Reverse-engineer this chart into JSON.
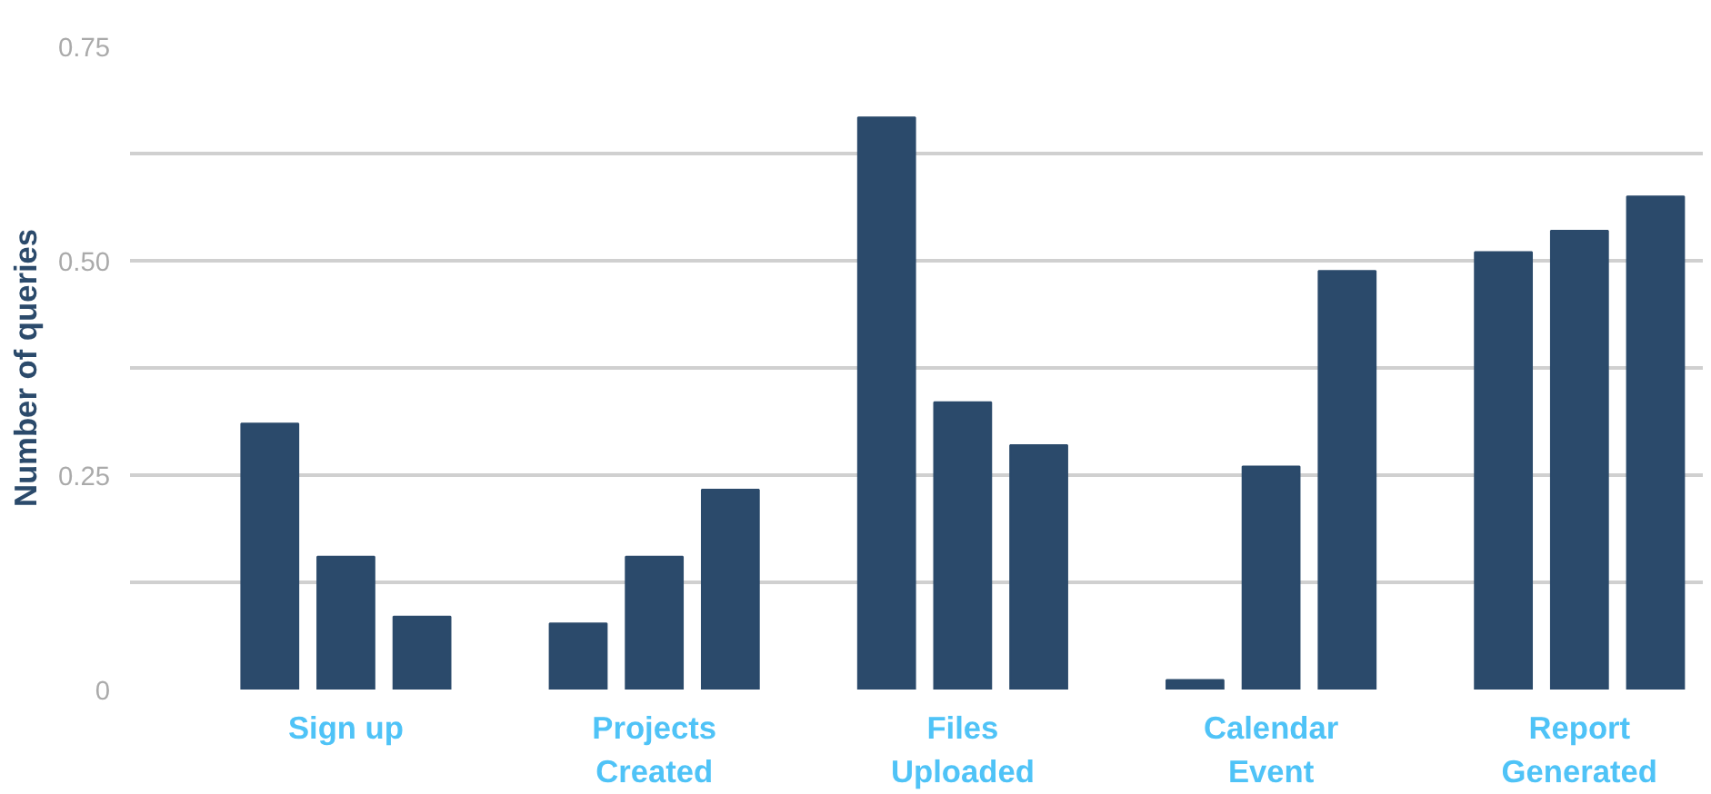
{
  "chart_data": {
    "type": "bar",
    "ylabel": "Number of queries",
    "categories": [
      "Sign up",
      "Projects\nCreated",
      "Files\nUploaded",
      "Calendar\nEvent",
      "Report\nGenerated"
    ],
    "series": [
      {
        "color": "#2b4a6b",
        "values": [
          0.31,
          0.077,
          0.667,
          0.011,
          0.51
        ]
      },
      {
        "color": "#2b4a6b",
        "values": [
          0.155,
          0.155,
          0.335,
          0.26,
          0.535
        ]
      },
      {
        "color": "#2b4a6b",
        "values": [
          0.085,
          0.233,
          0.285,
          0.488,
          0.575
        ]
      }
    ],
    "ylim": [
      0,
      0.75
    ],
    "yticks": [
      0,
      {
        "value": 0.125,
        "label": null
      },
      0.25,
      {
        "value": 0.375,
        "label": null
      },
      {
        "value": 0.5,
        "label": "0.50"
      },
      {
        "value": 0.625,
        "label": null
      },
      0.75
    ],
    "grid": "y"
  }
}
